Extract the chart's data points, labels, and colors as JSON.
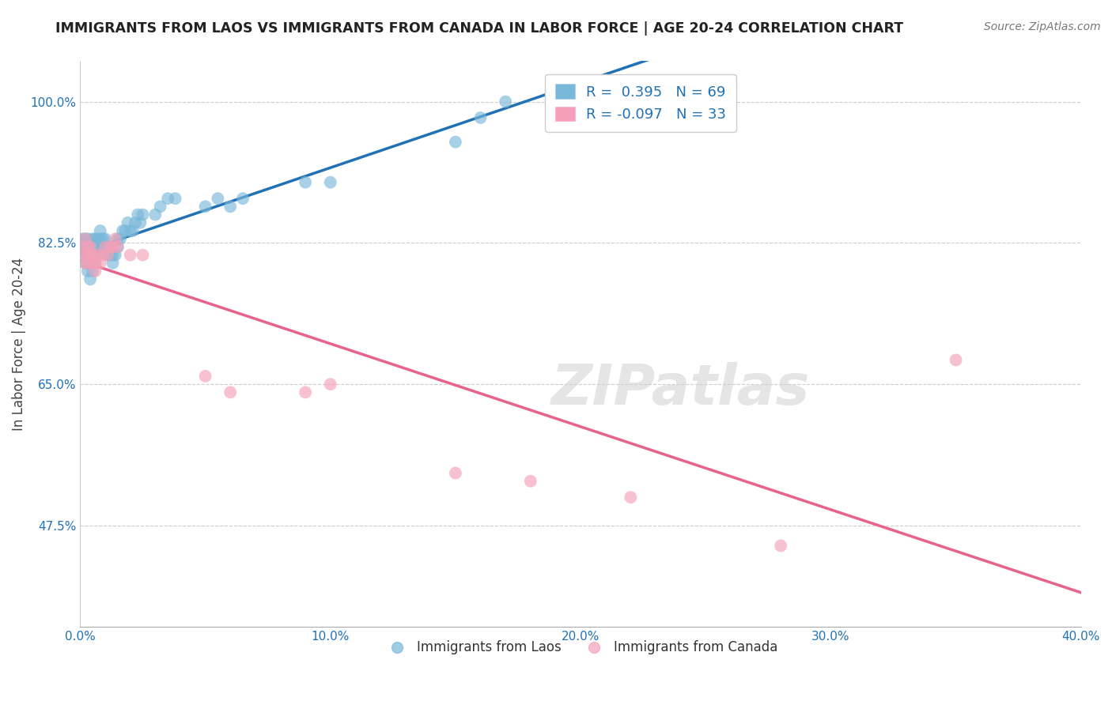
{
  "title": "IMMIGRANTS FROM LAOS VS IMMIGRANTS FROM CANADA IN LABOR FORCE | AGE 20-24 CORRELATION CHART",
  "source": "Source: ZipAtlas.com",
  "ylabel": "In Labor Force | Age 20-24",
  "xmin": 0.0,
  "xmax": 0.4,
  "ymin": 0.35,
  "ymax": 1.05,
  "xtick_labels": [
    "0.0%",
    "10.0%",
    "20.0%",
    "30.0%",
    "40.0%"
  ],
  "xtick_values": [
    0.0,
    0.1,
    0.2,
    0.3,
    0.4
  ],
  "ytick_labels": [
    "47.5%",
    "65.0%",
    "82.5%",
    "100.0%"
  ],
  "ytick_values": [
    0.475,
    0.65,
    0.825,
    1.0
  ],
  "r_laos": 0.395,
  "n_laos": 69,
  "r_canada": -0.097,
  "n_canada": 33,
  "color_laos": "#7ab8d9",
  "color_canada": "#f5a0b8",
  "trendline_laos_color": "#2171b5",
  "trendline_canada_color": "#e8638a",
  "watermark_text": "ZIPatlas",
  "laos_x": [
    0.001,
    0.001,
    0.001,
    0.002,
    0.002,
    0.002,
    0.002,
    0.002,
    0.002,
    0.003,
    0.003,
    0.003,
    0.003,
    0.003,
    0.004,
    0.004,
    0.004,
    0.004,
    0.005,
    0.005,
    0.005,
    0.005,
    0.005,
    0.006,
    0.006,
    0.006,
    0.006,
    0.007,
    0.007,
    0.007,
    0.008,
    0.008,
    0.008,
    0.009,
    0.009,
    0.01,
    0.01,
    0.011,
    0.011,
    0.012,
    0.012,
    0.013,
    0.013,
    0.014,
    0.015,
    0.015,
    0.016,
    0.017,
    0.018,
    0.019,
    0.02,
    0.021,
    0.022,
    0.023,
    0.024,
    0.025,
    0.03,
    0.032,
    0.035,
    0.038,
    0.05,
    0.055,
    0.06,
    0.065,
    0.09,
    0.1,
    0.15,
    0.16,
    0.17
  ],
  "laos_y": [
    0.82,
    0.825,
    0.83,
    0.8,
    0.81,
    0.815,
    0.82,
    0.825,
    0.83,
    0.79,
    0.8,
    0.81,
    0.82,
    0.83,
    0.78,
    0.8,
    0.81,
    0.82,
    0.79,
    0.8,
    0.81,
    0.82,
    0.83,
    0.8,
    0.81,
    0.82,
    0.83,
    0.81,
    0.82,
    0.83,
    0.82,
    0.83,
    0.84,
    0.82,
    0.83,
    0.82,
    0.83,
    0.81,
    0.82,
    0.81,
    0.82,
    0.8,
    0.81,
    0.81,
    0.82,
    0.83,
    0.83,
    0.84,
    0.84,
    0.85,
    0.84,
    0.84,
    0.85,
    0.86,
    0.85,
    0.86,
    0.86,
    0.87,
    0.88,
    0.88,
    0.87,
    0.88,
    0.87,
    0.88,
    0.9,
    0.9,
    0.95,
    0.98,
    1.0
  ],
  "canada_x": [
    0.001,
    0.002,
    0.002,
    0.002,
    0.003,
    0.003,
    0.003,
    0.004,
    0.004,
    0.005,
    0.005,
    0.006,
    0.006,
    0.007,
    0.008,
    0.009,
    0.01,
    0.011,
    0.012,
    0.013,
    0.014,
    0.015,
    0.02,
    0.025,
    0.05,
    0.06,
    0.09,
    0.1,
    0.15,
    0.18,
    0.22,
    0.28,
    0.35
  ],
  "canada_y": [
    0.82,
    0.8,
    0.81,
    0.83,
    0.8,
    0.81,
    0.82,
    0.81,
    0.82,
    0.8,
    0.81,
    0.79,
    0.8,
    0.81,
    0.8,
    0.81,
    0.82,
    0.81,
    0.82,
    0.82,
    0.83,
    0.82,
    0.81,
    0.81,
    0.66,
    0.64,
    0.64,
    0.65,
    0.54,
    0.53,
    0.51,
    0.45,
    0.68
  ]
}
